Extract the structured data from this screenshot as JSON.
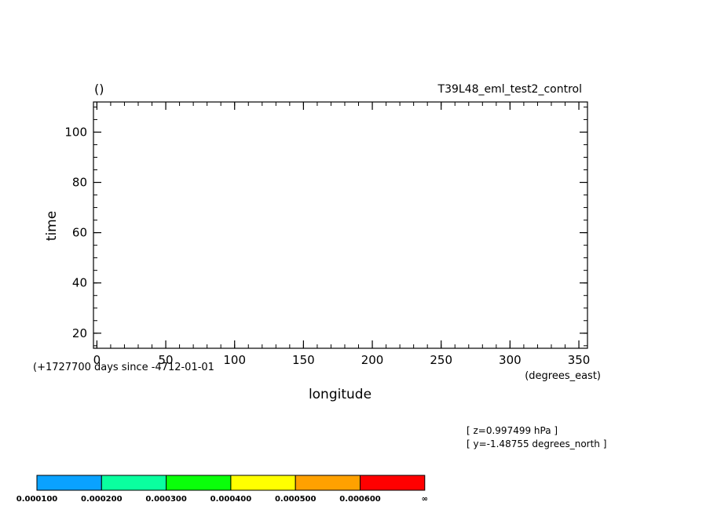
{
  "chart_data": {
    "type": "heatmap",
    "title_left": "()",
    "title_right": "T39L48_eml_test2_control",
    "xlabel": "longitude",
    "xunits": "(degrees_east)",
    "ylabel": "time",
    "yoffset_note": "(+1727700 days since -4712-01-01",
    "xlim": [
      -2.5,
      356.25
    ],
    "ylim": [
      14,
      112
    ],
    "xticks": [
      0,
      50,
      100,
      150,
      200,
      250,
      300,
      350
    ],
    "yticks": [
      20,
      40,
      60,
      80,
      100
    ],
    "xminor_step": 10,
    "yminor_step": 5,
    "grid": false,
    "data": [],
    "info_lines": [
      "[ z=0.997499 hPa ]",
      "[ y=-1.48755 degrees_north ]"
    ],
    "colorbar": {
      "colors": [
        "#0aa2ff",
        "#0aff9f",
        "#0aff0a",
        "#ffff00",
        "#ffa100",
        "#ff0000"
      ],
      "labels": [
        "0.000100",
        "0.000200",
        "0.000300",
        "0.000400",
        "0.000500",
        "0.000600",
        "∞"
      ]
    }
  }
}
